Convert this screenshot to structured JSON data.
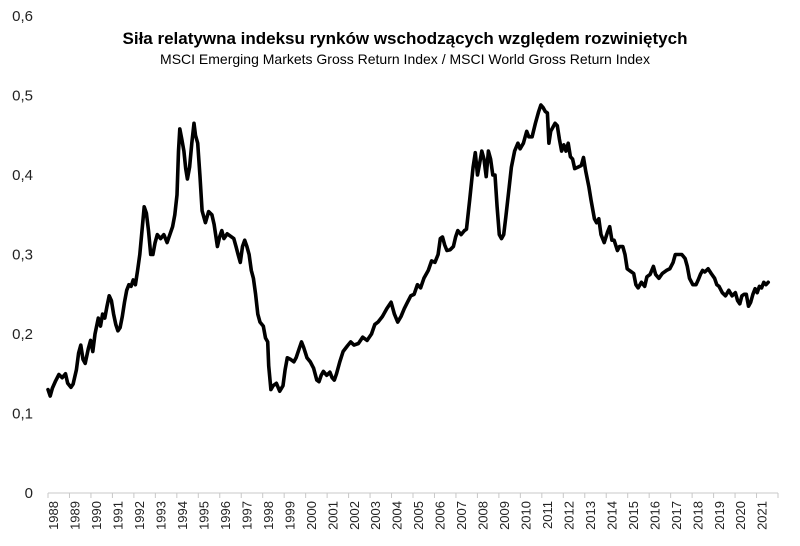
{
  "chart_data": {
    "type": "line",
    "title": "Siła relatywna indeksu rynków wschodzących względem rozwiniętych",
    "subtitle": "MSCI Emerging Markets Gross Return Index / MSCI World Gross Return Index",
    "xlabel": "",
    "ylabel": "",
    "ylim": [
      0,
      0.6
    ],
    "yticks": [
      "0",
      "0,1",
      "0,2",
      "0,3",
      "0,4",
      "0,5",
      "0,6"
    ],
    "xlim": [
      1988,
      2021.4
    ],
    "xticks": [
      "1988",
      "1989",
      "1990",
      "1991",
      "1992",
      "1993",
      "1994",
      "1995",
      "1996",
      "1997",
      "1998",
      "1999",
      "2000",
      "2001",
      "2002",
      "2003",
      "2004",
      "2005",
      "2006",
      "2007",
      "2008",
      "2009",
      "2010",
      "2011",
      "2012",
      "2013",
      "2014",
      "2015",
      "2016",
      "2017",
      "2018",
      "2019",
      "2020",
      "2021"
    ],
    "grid": false,
    "legend": "none",
    "series": [
      {
        "color": "#000000",
        "points": [
          [
            1988.0,
            0.13
          ],
          [
            1988.1,
            0.122
          ],
          [
            1988.2,
            0.132
          ],
          [
            1988.35,
            0.141
          ],
          [
            1988.5,
            0.149
          ],
          [
            1988.65,
            0.145
          ],
          [
            1988.8,
            0.15
          ],
          [
            1988.9,
            0.138
          ],
          [
            1989.05,
            0.133
          ],
          [
            1989.15,
            0.137
          ],
          [
            1989.3,
            0.155
          ],
          [
            1989.4,
            0.176
          ],
          [
            1989.5,
            0.186
          ],
          [
            1989.6,
            0.168
          ],
          [
            1989.7,
            0.163
          ],
          [
            1989.85,
            0.182
          ],
          [
            1989.95,
            0.192
          ],
          [
            1990.05,
            0.178
          ],
          [
            1990.15,
            0.2
          ],
          [
            1990.3,
            0.22
          ],
          [
            1990.4,
            0.21
          ],
          [
            1990.5,
            0.225
          ],
          [
            1990.6,
            0.22
          ],
          [
            1990.7,
            0.235
          ],
          [
            1990.8,
            0.248
          ],
          [
            1990.9,
            0.242
          ],
          [
            1991.0,
            0.225
          ],
          [
            1991.1,
            0.212
          ],
          [
            1991.2,
            0.204
          ],
          [
            1991.3,
            0.208
          ],
          [
            1991.4,
            0.222
          ],
          [
            1991.5,
            0.24
          ],
          [
            1991.6,
            0.255
          ],
          [
            1991.7,
            0.262
          ],
          [
            1991.8,
            0.26
          ],
          [
            1991.9,
            0.268
          ],
          [
            1992.0,
            0.262
          ],
          [
            1992.1,
            0.28
          ],
          [
            1992.2,
            0.3
          ],
          [
            1992.3,
            0.33
          ],
          [
            1992.4,
            0.36
          ],
          [
            1992.5,
            0.352
          ],
          [
            1992.6,
            0.33
          ],
          [
            1992.7,
            0.3
          ],
          [
            1992.8,
            0.3
          ],
          [
            1992.9,
            0.315
          ],
          [
            1993.0,
            0.325
          ],
          [
            1993.15,
            0.32
          ],
          [
            1993.3,
            0.325
          ],
          [
            1993.45,
            0.315
          ],
          [
            1993.55,
            0.323
          ],
          [
            1993.7,
            0.335
          ],
          [
            1993.8,
            0.35
          ],
          [
            1993.9,
            0.375
          ],
          [
            1993.97,
            0.43
          ],
          [
            1994.03,
            0.458
          ],
          [
            1994.12,
            0.445
          ],
          [
            1994.22,
            0.43
          ],
          [
            1994.3,
            0.408
          ],
          [
            1994.38,
            0.395
          ],
          [
            1994.48,
            0.41
          ],
          [
            1994.58,
            0.44
          ],
          [
            1994.68,
            0.465
          ],
          [
            1994.75,
            0.45
          ],
          [
            1994.85,
            0.44
          ],
          [
            1994.95,
            0.4
          ],
          [
            1995.05,
            0.355
          ],
          [
            1995.2,
            0.34
          ],
          [
            1995.35,
            0.354
          ],
          [
            1995.5,
            0.35
          ],
          [
            1995.6,
            0.338
          ],
          [
            1995.75,
            0.31
          ],
          [
            1995.85,
            0.322
          ],
          [
            1995.95,
            0.33
          ],
          [
            1996.05,
            0.32
          ],
          [
            1996.2,
            0.326
          ],
          [
            1996.35,
            0.323
          ],
          [
            1996.5,
            0.32
          ],
          [
            1996.6,
            0.31
          ],
          [
            1996.7,
            0.3
          ],
          [
            1996.8,
            0.29
          ],
          [
            1996.9,
            0.31
          ],
          [
            1997.0,
            0.318
          ],
          [
            1997.1,
            0.31
          ],
          [
            1997.2,
            0.3
          ],
          [
            1997.3,
            0.28
          ],
          [
            1997.4,
            0.27
          ],
          [
            1997.5,
            0.25
          ],
          [
            1997.6,
            0.225
          ],
          [
            1997.7,
            0.215
          ],
          [
            1997.85,
            0.21
          ],
          [
            1997.95,
            0.195
          ],
          [
            1998.05,
            0.19
          ],
          [
            1998.1,
            0.16
          ],
          [
            1998.2,
            0.13
          ],
          [
            1998.3,
            0.135
          ],
          [
            1998.45,
            0.138
          ],
          [
            1998.6,
            0.128
          ],
          [
            1998.75,
            0.135
          ],
          [
            1998.85,
            0.155
          ],
          [
            1998.95,
            0.17
          ],
          [
            1999.1,
            0.168
          ],
          [
            1999.25,
            0.165
          ],
          [
            1999.35,
            0.17
          ],
          [
            1999.5,
            0.182
          ],
          [
            1999.6,
            0.19
          ],
          [
            1999.7,
            0.183
          ],
          [
            1999.85,
            0.17
          ],
          [
            2000.0,
            0.165
          ],
          [
            2000.15,
            0.157
          ],
          [
            2000.3,
            0.142
          ],
          [
            2000.4,
            0.14
          ],
          [
            2000.5,
            0.148
          ],
          [
            2000.6,
            0.153
          ],
          [
            2000.75,
            0.148
          ],
          [
            2000.9,
            0.152
          ],
          [
            2001.0,
            0.145
          ],
          [
            2001.1,
            0.142
          ],
          [
            2001.2,
            0.15
          ],
          [
            2001.35,
            0.165
          ],
          [
            2001.5,
            0.178
          ],
          [
            2001.7,
            0.185
          ],
          [
            2001.85,
            0.19
          ],
          [
            2002.0,
            0.186
          ],
          [
            2002.2,
            0.188
          ],
          [
            2002.4,
            0.196
          ],
          [
            2002.6,
            0.192
          ],
          [
            2002.8,
            0.2
          ],
          [
            2002.95,
            0.212
          ],
          [
            2003.1,
            0.215
          ],
          [
            2003.3,
            0.222
          ],
          [
            2003.5,
            0.232
          ],
          [
            2003.7,
            0.24
          ],
          [
            2003.85,
            0.225
          ],
          [
            2004.0,
            0.215
          ],
          [
            2004.15,
            0.222
          ],
          [
            2004.3,
            0.232
          ],
          [
            2004.45,
            0.24
          ],
          [
            2004.6,
            0.248
          ],
          [
            2004.75,
            0.25
          ],
          [
            2004.9,
            0.262
          ],
          [
            2005.05,
            0.258
          ],
          [
            2005.2,
            0.27
          ],
          [
            2005.4,
            0.28
          ],
          [
            2005.55,
            0.292
          ],
          [
            2005.7,
            0.29
          ],
          [
            2005.85,
            0.3
          ],
          [
            2005.95,
            0.32
          ],
          [
            2006.05,
            0.322
          ],
          [
            2006.15,
            0.312
          ],
          [
            2006.25,
            0.305
          ],
          [
            2006.4,
            0.306
          ],
          [
            2006.55,
            0.31
          ],
          [
            2006.65,
            0.322
          ],
          [
            2006.75,
            0.33
          ],
          [
            2006.9,
            0.325
          ],
          [
            2007.05,
            0.33
          ],
          [
            2007.15,
            0.332
          ],
          [
            2007.3,
            0.37
          ],
          [
            2007.45,
            0.41
          ],
          [
            2007.55,
            0.428
          ],
          [
            2007.65,
            0.4
          ],
          [
            2007.75,
            0.415
          ],
          [
            2007.85,
            0.43
          ],
          [
            2007.95,
            0.42
          ],
          [
            2008.05,
            0.398
          ],
          [
            2008.15,
            0.43
          ],
          [
            2008.25,
            0.42
          ],
          [
            2008.35,
            0.4
          ],
          [
            2008.45,
            0.4
          ],
          [
            2008.55,
            0.36
          ],
          [
            2008.65,
            0.325
          ],
          [
            2008.75,
            0.32
          ],
          [
            2008.85,
            0.325
          ],
          [
            2008.95,
            0.348
          ],
          [
            2009.1,
            0.385
          ],
          [
            2009.2,
            0.41
          ],
          [
            2009.35,
            0.43
          ],
          [
            2009.5,
            0.44
          ],
          [
            2009.6,
            0.433
          ],
          [
            2009.75,
            0.44
          ],
          [
            2009.9,
            0.455
          ],
          [
            2010.0,
            0.448
          ],
          [
            2010.15,
            0.448
          ],
          [
            2010.3,
            0.465
          ],
          [
            2010.45,
            0.48
          ],
          [
            2010.55,
            0.488
          ],
          [
            2010.65,
            0.485
          ],
          [
            2010.75,
            0.48
          ],
          [
            2010.85,
            0.478
          ],
          [
            2010.92,
            0.44
          ],
          [
            2011.0,
            0.455
          ],
          [
            2011.1,
            0.46
          ],
          [
            2011.2,
            0.465
          ],
          [
            2011.3,
            0.462
          ],
          [
            2011.4,
            0.445
          ],
          [
            2011.5,
            0.43
          ],
          [
            2011.6,
            0.438
          ],
          [
            2011.7,
            0.43
          ],
          [
            2011.8,
            0.44
          ],
          [
            2011.9,
            0.423
          ],
          [
            2012.0,
            0.42
          ],
          [
            2012.1,
            0.408
          ],
          [
            2012.25,
            0.41
          ],
          [
            2012.4,
            0.412
          ],
          [
            2012.5,
            0.422
          ],
          [
            2012.6,
            0.405
          ],
          [
            2012.75,
            0.385
          ],
          [
            2012.85,
            0.368
          ],
          [
            2013.0,
            0.345
          ],
          [
            2013.1,
            0.34
          ],
          [
            2013.2,
            0.345
          ],
          [
            2013.3,
            0.325
          ],
          [
            2013.45,
            0.315
          ],
          [
            2013.6,
            0.328
          ],
          [
            2013.7,
            0.335
          ],
          [
            2013.8,
            0.318
          ],
          [
            2013.9,
            0.318
          ],
          [
            2014.05,
            0.305
          ],
          [
            2014.15,
            0.31
          ],
          [
            2014.3,
            0.31
          ],
          [
            2014.4,
            0.3
          ],
          [
            2014.5,
            0.282
          ],
          [
            2014.6,
            0.28
          ],
          [
            2014.7,
            0.278
          ],
          [
            2014.8,
            0.276
          ],
          [
            2014.9,
            0.262
          ],
          [
            2015.0,
            0.258
          ],
          [
            2015.15,
            0.265
          ],
          [
            2015.3,
            0.26
          ],
          [
            2015.4,
            0.272
          ],
          [
            2015.55,
            0.275
          ],
          [
            2015.7,
            0.285
          ],
          [
            2015.8,
            0.275
          ],
          [
            2015.95,
            0.27
          ],
          [
            2016.1,
            0.276
          ],
          [
            2016.3,
            0.28
          ],
          [
            2016.45,
            0.282
          ],
          [
            2016.6,
            0.29
          ],
          [
            2016.7,
            0.3
          ],
          [
            2016.85,
            0.3
          ],
          [
            2017.0,
            0.3
          ],
          [
            2017.15,
            0.295
          ],
          [
            2017.25,
            0.285
          ],
          [
            2017.35,
            0.27
          ],
          [
            2017.5,
            0.262
          ],
          [
            2017.65,
            0.262
          ],
          [
            2017.75,
            0.268
          ],
          [
            2017.85,
            0.275
          ],
          [
            2017.95,
            0.28
          ],
          [
            2018.05,
            0.278
          ],
          [
            2018.2,
            0.282
          ],
          [
            2018.35,
            0.276
          ],
          [
            2018.5,
            0.27
          ],
          [
            2018.6,
            0.262
          ],
          [
            2018.7,
            0.26
          ],
          [
            2018.85,
            0.252
          ],
          [
            2019.0,
            0.248
          ],
          [
            2019.15,
            0.255
          ],
          [
            2019.3,
            0.248
          ],
          [
            2019.45,
            0.252
          ],
          [
            2019.55,
            0.242
          ],
          [
            2019.65,
            0.238
          ],
          [
            2019.75,
            0.248
          ],
          [
            2019.85,
            0.25
          ],
          [
            2019.95,
            0.25
          ],
          [
            2020.05,
            0.235
          ],
          [
            2020.15,
            0.24
          ],
          [
            2020.25,
            0.25
          ],
          [
            2020.35,
            0.257
          ],
          [
            2020.45,
            0.252
          ],
          [
            2020.55,
            0.26
          ],
          [
            2020.65,
            0.258
          ],
          [
            2020.75,
            0.265
          ],
          [
            2020.85,
            0.262
          ],
          [
            2020.95,
            0.265
          ]
        ]
      }
    ]
  }
}
